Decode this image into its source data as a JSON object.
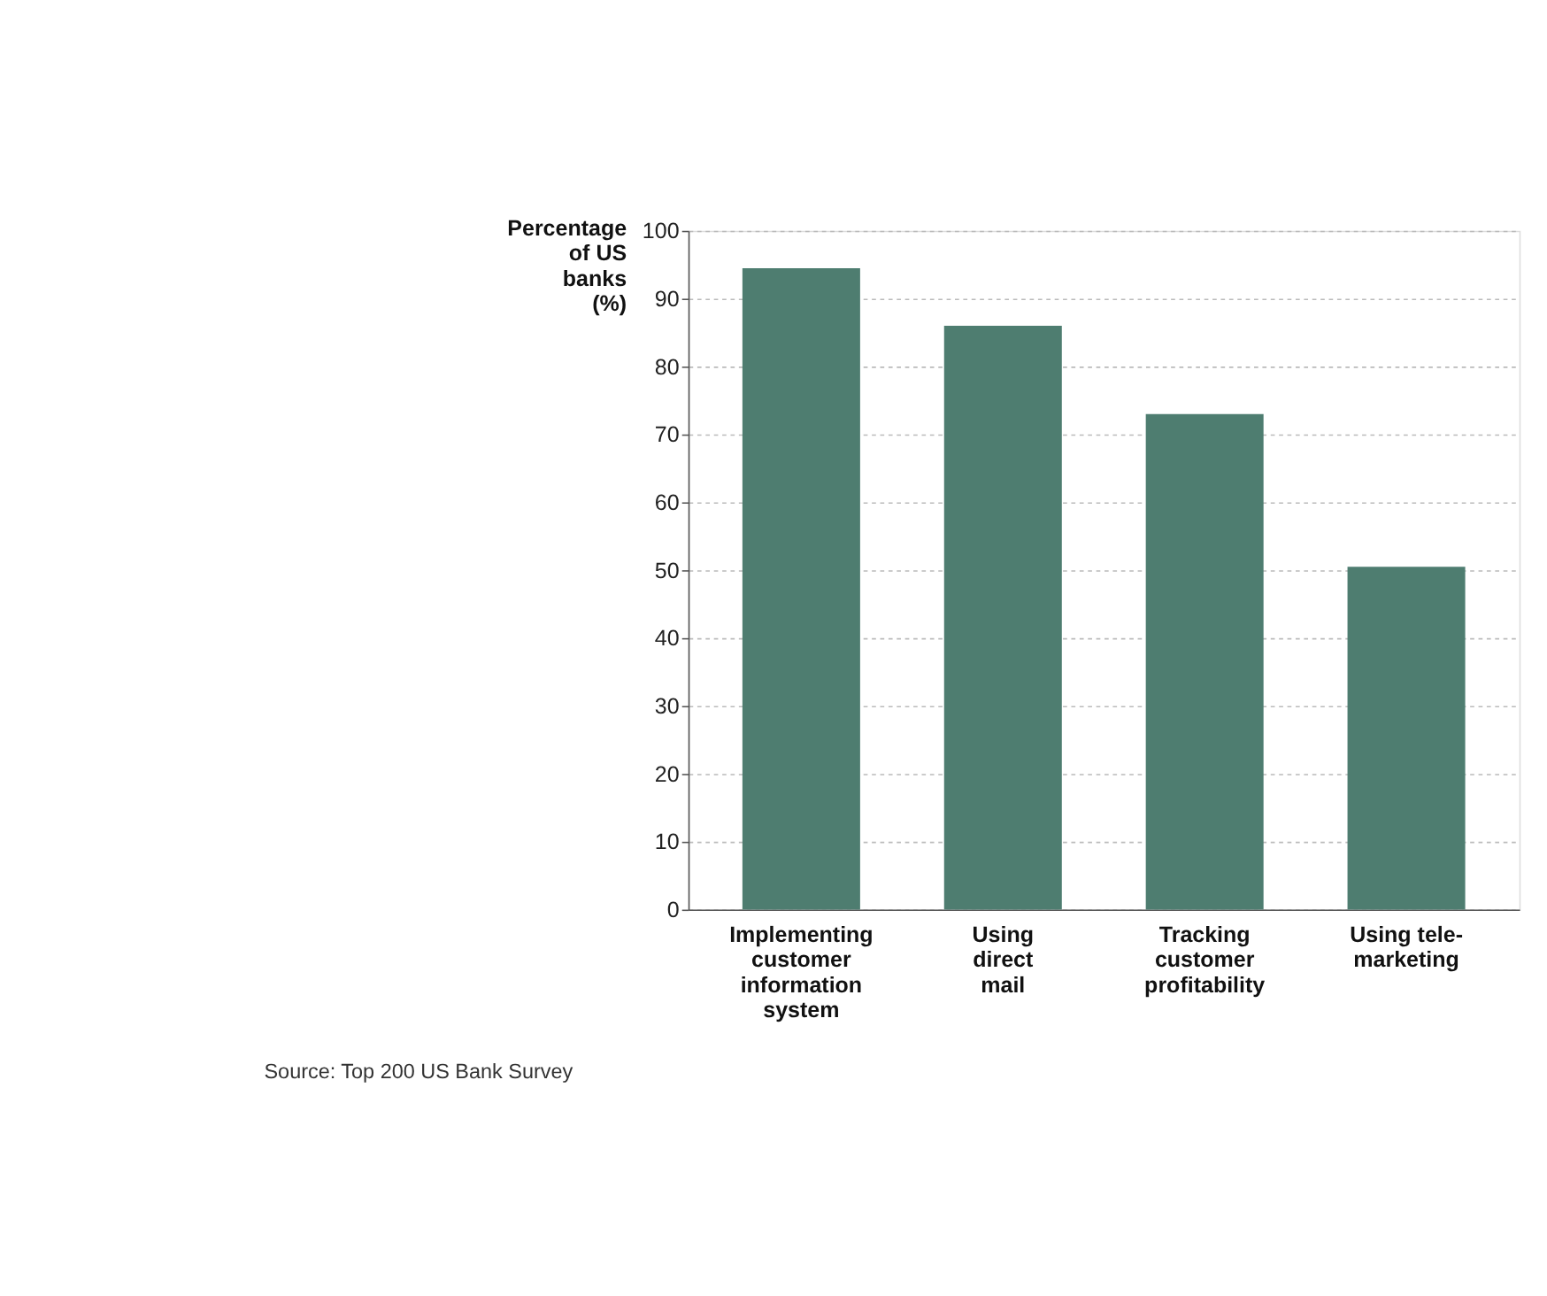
{
  "chart_data": {
    "type": "bar",
    "categories": [
      "Implementing\ncustomer\ninformation\nsystem",
      "Using\ndirect\nmail",
      "Tracking\ncustomer\nprofitability",
      "Using tele-\nmarketing"
    ],
    "values": [
      94.5,
      86,
      73,
      50.5
    ],
    "color": "#4e7d70",
    "ylabel": "Percentage\nof US\nbanks\n(%)",
    "ylim": [
      0,
      100
    ],
    "yticks": [
      0,
      10,
      20,
      30,
      40,
      50,
      60,
      70,
      80,
      90,
      100
    ],
    "grid": "y",
    "annotations": [
      "Source: Top 200 US Bank Survey"
    ]
  }
}
